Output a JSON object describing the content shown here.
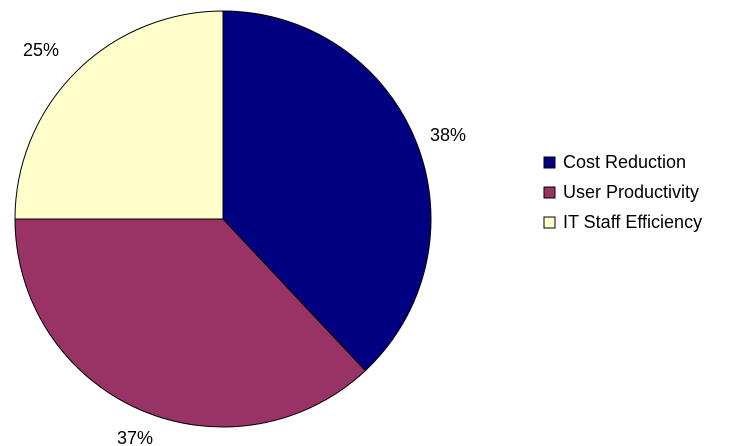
{
  "chart_data": {
    "type": "pie",
    "slices": [
      {
        "label": "Cost Reduction",
        "value": 38,
        "data_label": "38%",
        "color": "#000080"
      },
      {
        "label": "User Productivity",
        "value": 37,
        "data_label": "37%",
        "color": "#993366"
      },
      {
        "label": "IT Staff Efficiency",
        "value": 25,
        "data_label": "25%",
        "color": "#FFFFCC"
      }
    ],
    "legend_placement": "right",
    "start_angle": "12 o'clock",
    "direction": "clockwise"
  }
}
